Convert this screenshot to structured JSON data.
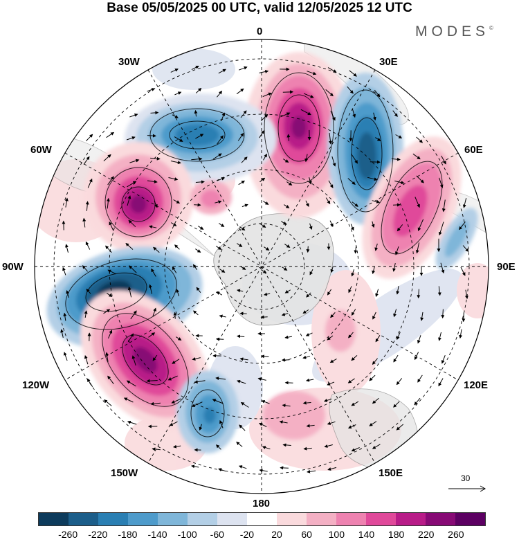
{
  "title": "Base 05/05/2025 00 UTC, valid 12/05/2025 12 UTC",
  "brand": "MODES",
  "brand_mark": "©",
  "lon_labels": {
    "l0": "0",
    "l30e": "30E",
    "l60e": "60E",
    "l90e": "90E",
    "l120e": "120E",
    "l150e": "150E",
    "l180": "180",
    "l150w": "150W",
    "l120w": "120W",
    "l90w": "90W",
    "l60w": "60W",
    "l30w": "30W"
  },
  "vector_reference": {
    "value": "30"
  },
  "colorbar": {
    "colors": [
      "#0d3b5c",
      "#1c5e8a",
      "#2a7fb3",
      "#4e9bcb",
      "#7fb6d9",
      "#b3cfe6",
      "#dde3f0",
      "#ffffff",
      "#fadadd",
      "#f4b0c4",
      "#ee82b0",
      "#e0499a",
      "#b81c88",
      "#870a75",
      "#5c0062"
    ],
    "ticks": [
      "-260",
      "-220",
      "-180",
      "-140",
      "-100",
      "-60",
      "-20",
      "20",
      "60",
      "100",
      "140",
      "180",
      "220",
      "260"
    ]
  }
}
